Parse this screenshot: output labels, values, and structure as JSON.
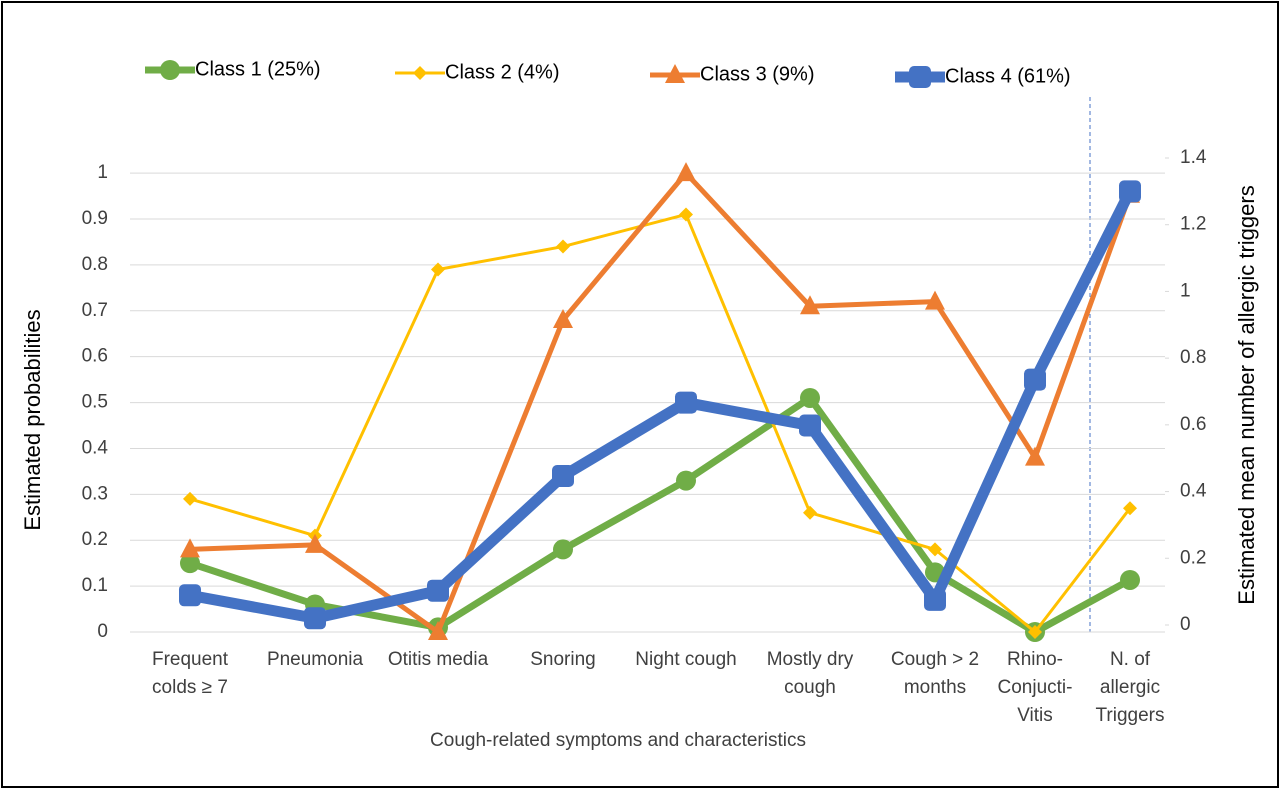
{
  "chart_data": {
    "type": "line",
    "xlabel": "Cough-related symptoms and characteristics",
    "ylabel": "Estimated probabilities",
    "y2label": "Estimated mean number of allergic triggers",
    "categories": [
      "Frequent\ncolds ≥ 7",
      "Pneumonia",
      "Otitis media",
      "Snoring",
      "Night cough",
      "Mostly dry\ncough",
      "Cough > 2\nmonths",
      "Rhino-\nConjucti-\nVitis",
      "N. of\nallergic\nTriggers"
    ],
    "ylim": [
      0,
      1.033
    ],
    "yticks": [
      0,
      0.1,
      0.2,
      0.3,
      0.4,
      0.5,
      0.6,
      0.7,
      0.8,
      0.9,
      1
    ],
    "y2lim": [
      -0.021,
      1.4
    ],
    "y2ticks": [
      0,
      0.2,
      0.4,
      0.6,
      0.8,
      1,
      1.2,
      1.4
    ],
    "grid": true,
    "series": [
      {
        "name": "Class 1 (25%)",
        "color": "#70ad47",
        "marker": "circle",
        "line_width": 7,
        "values": [
          0.15,
          0.06,
          0.01,
          0.18,
          0.33,
          0.51,
          0.13,
          0.0,
          null
        ],
        "y2_values": [
          null,
          null,
          null,
          null,
          null,
          null,
          null,
          null,
          0.135
        ]
      },
      {
        "name": "Class 2 (4%)",
        "color": "#ffc000",
        "marker": "diamond",
        "line_width": 3,
        "values": [
          0.29,
          0.21,
          0.79,
          0.84,
          0.91,
          0.26,
          0.18,
          0.0,
          null
        ],
        "y2_values": [
          null,
          null,
          null,
          null,
          null,
          null,
          null,
          null,
          0.35
        ]
      },
      {
        "name": "Class 3 (9%)",
        "color": "#ed7d31",
        "marker": "triangle",
        "line_width": 5,
        "values": [
          0.18,
          0.19,
          0.0,
          0.68,
          1.0,
          0.71,
          0.72,
          0.38,
          null
        ],
        "y2_values": [
          null,
          null,
          null,
          null,
          null,
          null,
          null,
          null,
          1.29
        ]
      },
      {
        "name": "Class 4 (61%)",
        "color": "#4472c4",
        "marker": "square",
        "line_width": 11,
        "values": [
          0.08,
          0.03,
          0.09,
          0.34,
          0.5,
          0.45,
          0.07,
          0.55,
          null
        ],
        "y2_values": [
          null,
          null,
          null,
          null,
          null,
          null,
          null,
          null,
          1.3
        ]
      }
    ]
  }
}
